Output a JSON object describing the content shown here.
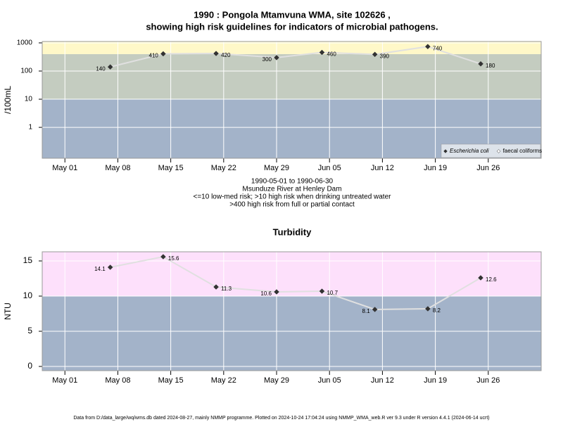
{
  "chart_data": [
    {
      "type": "line",
      "title_lines": [
        "1990 : Pongola Mtamvuna WMA, site 102626 ,",
        "showing high risk guidelines for indicators of microbial pathogens."
      ],
      "y_label": "/100mL",
      "log_scale": true,
      "x": [
        "1990-05-07",
        "1990-05-14",
        "1990-05-21",
        "1990-05-29",
        "1990-06-04",
        "1990-06-11",
        "1990-06-18",
        "1990-06-25"
      ],
      "series": [
        {
          "name": "Escherichia coli",
          "color": "#333333",
          "line_color": "#e0e0e0",
          "values": [
            140,
            410,
            420,
            300,
            460,
            390,
            740,
            180
          ]
        },
        {
          "name": "faecal coliforms",
          "color": "#ffffff",
          "line_color": "#e0e0e0",
          "values": [
            null,
            null,
            null,
            null,
            null,
            null,
            null,
            null
          ]
        }
      ],
      "xlim": [
        "1990-04-28",
        "1990-07-03"
      ],
      "xticks": [
        {
          "value": "1990-05-01",
          "label": "May 01"
        },
        {
          "value": "1990-05-08",
          "label": "May 08"
        },
        {
          "value": "1990-05-15",
          "label": "May 15"
        },
        {
          "value": "1990-05-22",
          "label": "May 22"
        },
        {
          "value": "1990-05-29",
          "label": "May 29"
        },
        {
          "value": "1990-06-05",
          "label": "Jun 05"
        },
        {
          "value": "1990-06-12",
          "label": "Jun 12"
        },
        {
          "value": "1990-06-19",
          "label": "Jun 19"
        },
        {
          "value": "1990-06-26",
          "label": "Jun 26"
        }
      ],
      "ylim": [
        0.08,
        1120
      ],
      "yticks": [
        1,
        10,
        100,
        1000
      ],
      "grid": true,
      "legend": "bottom-right",
      "bands": [
        {
          "to": 10,
          "color": "#a3b3c9"
        },
        {
          "from": 10,
          "to": 400,
          "color": "#c4ccc0"
        },
        {
          "from": 400,
          "color": "#fff8c8"
        }
      ],
      "notes": [
        "1990-05-01 to 1990-06-30",
        "Msunduze River at Henley Dam",
        "<=10 low-med risk; >10 high risk when drinking untreated water",
        ">400 high risk from full or partial contact"
      ]
    },
    {
      "type": "line",
      "title_lines": [
        "Turbidity"
      ],
      "y_label": "NTU",
      "log_scale": false,
      "x": [
        "1990-05-07",
        "1990-05-14",
        "1990-05-21",
        "1990-05-29",
        "1990-06-04",
        "1990-06-11",
        "1990-06-18",
        "1990-06-25"
      ],
      "series": [
        {
          "name": "Turbidity",
          "color": "#333333",
          "line_color": "#e0e0e0",
          "values": [
            14.1,
            15.6,
            11.3,
            10.6,
            10.7,
            8.1,
            8.2,
            12.6
          ]
        }
      ],
      "xlim": [
        "1990-04-28",
        "1990-07-03"
      ],
      "xticks": [
        {
          "value": "1990-05-01",
          "label": "May 01"
        },
        {
          "value": "1990-05-08",
          "label": "May 08"
        },
        {
          "value": "1990-05-15",
          "label": "May 15"
        },
        {
          "value": "1990-05-22",
          "label": "May 22"
        },
        {
          "value": "1990-05-29",
          "label": "May 29"
        },
        {
          "value": "1990-06-05",
          "label": "Jun 05"
        },
        {
          "value": "1990-06-12",
          "label": "Jun 12"
        },
        {
          "value": "1990-06-19",
          "label": "Jun 19"
        },
        {
          "value": "1990-06-26",
          "label": "Jun 26"
        }
      ],
      "ylim": [
        -0.6,
        16.3
      ],
      "yticks": [
        0,
        5,
        10,
        15
      ],
      "grid": true,
      "bands": [
        {
          "to": 10,
          "color": "#a3b3c9"
        },
        {
          "from": 10,
          "color": "#fde0fb"
        }
      ]
    }
  ],
  "footer": "Data from D:/data_large/wq/wms.db dated 2024-08-27, mainly NMMP programme. Plotted on 2024-10-24 17:04:24 using NMMP_WMA_web.R ver 9.3 under R version 4.4.1 (2024-06-14 ucrt)"
}
